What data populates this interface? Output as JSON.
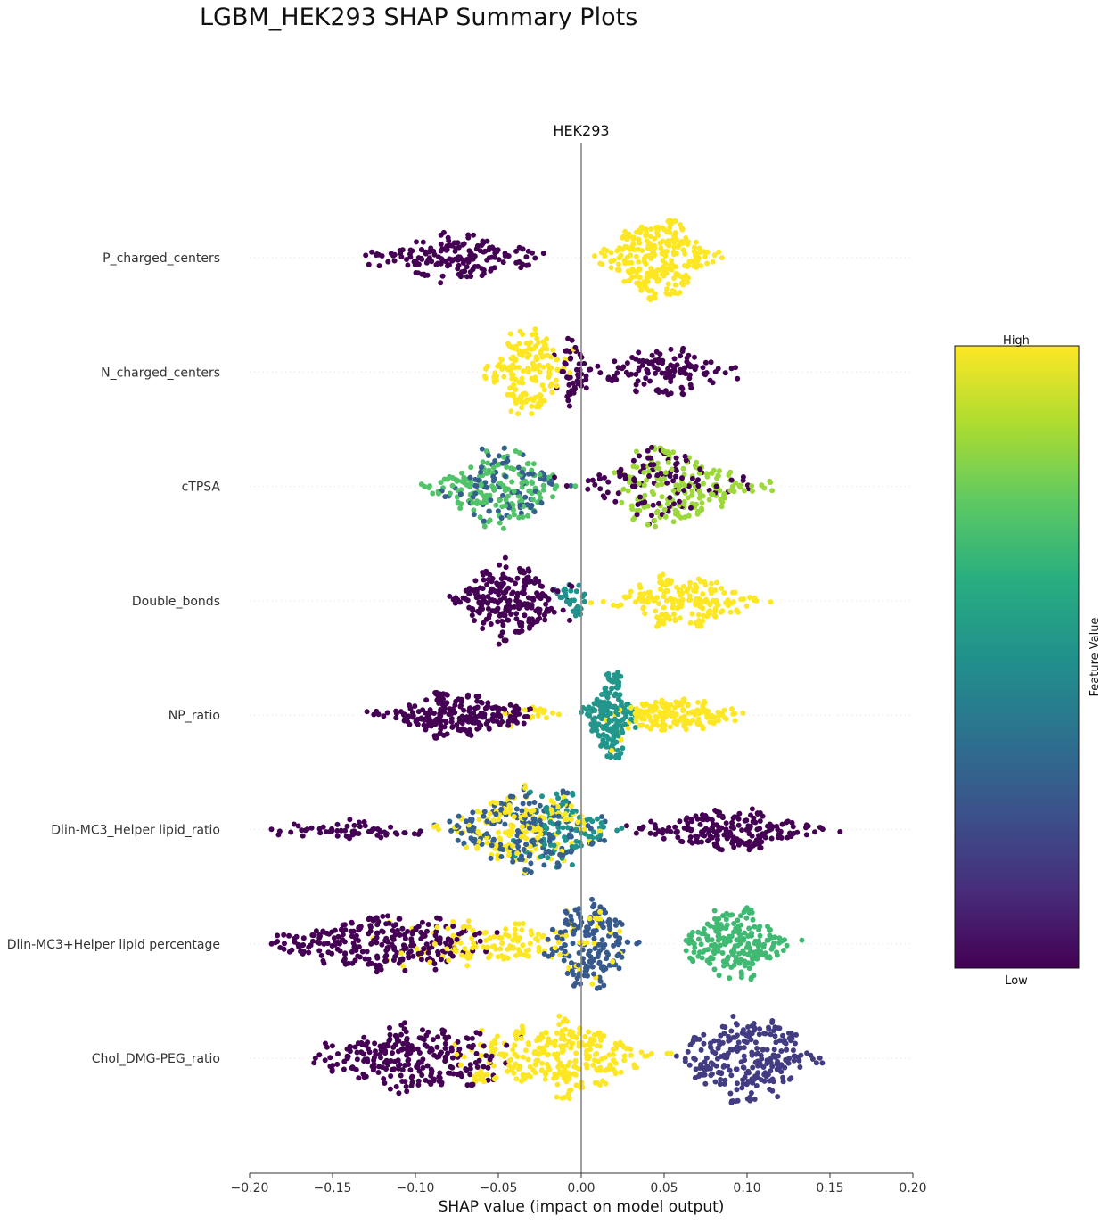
{
  "figure": {
    "suptitle": "LGBM_HEK293 SHAP Summary Plots"
  },
  "chart_data": {
    "type": "scatter",
    "subtype": "shap-beeswarm",
    "title": "HEK293",
    "xlabel": "SHAP value (impact on model output)",
    "xlim": [
      -0.2,
      0.2
    ],
    "xticks": [
      -0.2,
      -0.15,
      -0.1,
      -0.05,
      0.0,
      0.05,
      0.1,
      0.15,
      0.2
    ],
    "xtick_labels": [
      "−0.20",
      "−0.15",
      "−0.10",
      "−0.05",
      "0.00",
      "0.05",
      "0.10",
      "0.15",
      "0.20"
    ],
    "zero_line": true,
    "colorbar": {
      "label": "Feature Value",
      "high_label": "High",
      "low_label": "Low",
      "colormap": [
        "#440154",
        "#3b528b",
        "#21918c",
        "#5ec962",
        "#fde725"
      ]
    },
    "features": [
      {
        "name": "P_charged_centers",
        "segments": [
          {
            "from": -0.14,
            "to": -0.01,
            "color": 0.0,
            "count": 170
          },
          {
            "from": 0.0,
            "to": 0.09,
            "color": 1.0,
            "count": 260
          }
        ]
      },
      {
        "name": "N_charged_centers",
        "segments": [
          {
            "from": -0.065,
            "to": 0.0,
            "color": 1.0,
            "count": 160
          },
          {
            "from": -0.02,
            "to": 0.01,
            "color": 0.0,
            "count": 50
          },
          {
            "from": 0.0,
            "to": 0.105,
            "color": 0.0,
            "count": 120
          }
        ]
      },
      {
        "name": "cTPSA",
        "segments": [
          {
            "from": -0.11,
            "to": 0.0,
            "color": 0.72,
            "count": 160
          },
          {
            "from": -0.09,
            "to": 0.0,
            "color": 0.3,
            "count": 90
          },
          {
            "from": -0.02,
            "to": 0.11,
            "color": 0.0,
            "count": 110
          },
          {
            "from": 0.0,
            "to": 0.125,
            "color": 0.85,
            "count": 170
          }
        ]
      },
      {
        "name": "Double_bonds",
        "segments": [
          {
            "from": -0.085,
            "to": 0.0,
            "color": 0.0,
            "count": 230
          },
          {
            "from": -0.02,
            "to": 0.01,
            "color": 0.5,
            "count": 30
          },
          {
            "from": 0.0,
            "to": 0.125,
            "color": 1.0,
            "count": 180
          }
        ]
      },
      {
        "name": "NP_ratio",
        "segments": [
          {
            "from": -0.13,
            "to": -0.02,
            "color": 0.0,
            "count": 230
          },
          {
            "from": -0.06,
            "to": 0.0,
            "color": 1.0,
            "count": 20
          },
          {
            "from": 0.0,
            "to": 0.035,
            "color": 0.52,
            "count": 180
          },
          {
            "from": 0.01,
            "to": 0.105,
            "color": 1.0,
            "count": 160
          }
        ]
      },
      {
        "name": "Dlin-MC3_Helper lipid_ratio",
        "segments": [
          {
            "from": -0.195,
            "to": -0.08,
            "color": 0.0,
            "count": 60
          },
          {
            "from": -0.1,
            "to": 0.03,
            "color": 0.3,
            "count": 180
          },
          {
            "from": -0.1,
            "to": 0.03,
            "color": 1.0,
            "count": 160
          },
          {
            "from": -0.05,
            "to": 0.03,
            "color": 0.5,
            "count": 100
          },
          {
            "from": 0.02,
            "to": 0.16,
            "color": 0.0,
            "count": 200
          }
        ]
      },
      {
        "name": "Dlin-MC3+Helper lipid percentage",
        "segments": [
          {
            "from": -0.2,
            "to": -0.04,
            "color": 0.0,
            "count": 260
          },
          {
            "from": -0.14,
            "to": 0.05,
            "color": 1.0,
            "count": 150
          },
          {
            "from": -0.03,
            "to": 0.04,
            "color": 0.28,
            "count": 170
          },
          {
            "from": 0.05,
            "to": 0.138,
            "color": 0.68,
            "count": 200
          }
        ]
      },
      {
        "name": "Chol_DMG-PEG_ratio",
        "segments": [
          {
            "from": -0.175,
            "to": -0.03,
            "color": 0.0,
            "count": 260
          },
          {
            "from": -0.09,
            "to": 0.06,
            "color": 1.0,
            "count": 280
          },
          {
            "from": 0.05,
            "to": 0.152,
            "color": 0.18,
            "count": 260
          }
        ]
      }
    ]
  }
}
